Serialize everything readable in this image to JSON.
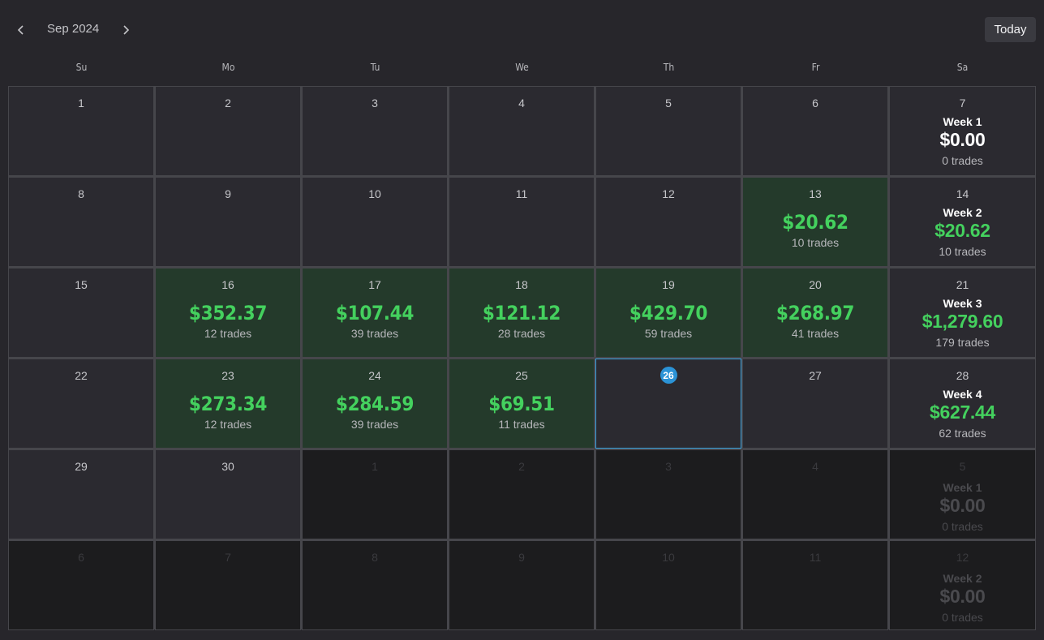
{
  "header": {
    "month_label": "Sep 2024",
    "today_label": "Today",
    "prev_icon": "chevron-left-icon",
    "next_icon": "chevron-right-icon"
  },
  "weekdays": [
    "Su",
    "Mo",
    "Tu",
    "We",
    "Th",
    "Fr",
    "Sa"
  ],
  "colors": {
    "profit": "#44d15e",
    "today_ring": "#3ba4e0",
    "today_dot": "#2b93d6",
    "profit_bg": "#243a2b"
  },
  "weeks": [
    {
      "days": [
        {
          "day": "1"
        },
        {
          "day": "2"
        },
        {
          "day": "3"
        },
        {
          "day": "4"
        },
        {
          "day": "5"
        },
        {
          "day": "6"
        },
        {
          "day": "7",
          "week": {
            "label": "Week 1",
            "amount": "$0.00",
            "trades": "0 trades",
            "zero": true
          }
        }
      ]
    },
    {
      "days": [
        {
          "day": "8"
        },
        {
          "day": "9"
        },
        {
          "day": "10"
        },
        {
          "day": "11"
        },
        {
          "day": "12"
        },
        {
          "day": "13",
          "amount": "$20.62",
          "trades": "10 trades"
        },
        {
          "day": "14",
          "week": {
            "label": "Week 2",
            "amount": "$20.62",
            "trades": "10 trades"
          }
        }
      ]
    },
    {
      "days": [
        {
          "day": "15"
        },
        {
          "day": "16",
          "amount": "$352.37",
          "trades": "12 trades"
        },
        {
          "day": "17",
          "amount": "$107.44",
          "trades": "39 trades"
        },
        {
          "day": "18",
          "amount": "$121.12",
          "trades": "28 trades"
        },
        {
          "day": "19",
          "amount": "$429.70",
          "trades": "59 trades"
        },
        {
          "day": "20",
          "amount": "$268.97",
          "trades": "41 trades"
        },
        {
          "day": "21",
          "week": {
            "label": "Week 3",
            "amount": "$1,279.60",
            "trades": "179 trades"
          }
        }
      ]
    },
    {
      "days": [
        {
          "day": "22"
        },
        {
          "day": "23",
          "amount": "$273.34",
          "trades": "12 trades"
        },
        {
          "day": "24",
          "amount": "$284.59",
          "trades": "39 trades"
        },
        {
          "day": "25",
          "amount": "$69.51",
          "trades": "11 trades"
        },
        {
          "day": "26",
          "today": true
        },
        {
          "day": "27"
        },
        {
          "day": "28",
          "week": {
            "label": "Week 4",
            "amount": "$627.44",
            "trades": "62 trades"
          }
        }
      ]
    },
    {
      "days": [
        {
          "day": "29"
        },
        {
          "day": "30"
        },
        {
          "day": "1",
          "other": true
        },
        {
          "day": "2",
          "other": true
        },
        {
          "day": "3",
          "other": true
        },
        {
          "day": "4",
          "other": true
        },
        {
          "day": "5",
          "other": true,
          "week": {
            "label": "Week 1",
            "amount": "$0.00",
            "trades": "0 trades",
            "zero": true
          }
        }
      ]
    },
    {
      "days": [
        {
          "day": "6",
          "other": true
        },
        {
          "day": "7",
          "other": true
        },
        {
          "day": "8",
          "other": true
        },
        {
          "day": "9",
          "other": true
        },
        {
          "day": "10",
          "other": true
        },
        {
          "day": "11",
          "other": true
        },
        {
          "day": "12",
          "other": true,
          "week": {
            "label": "Week 2",
            "amount": "$0.00",
            "trades": "0 trades",
            "zero": true
          }
        }
      ]
    }
  ]
}
